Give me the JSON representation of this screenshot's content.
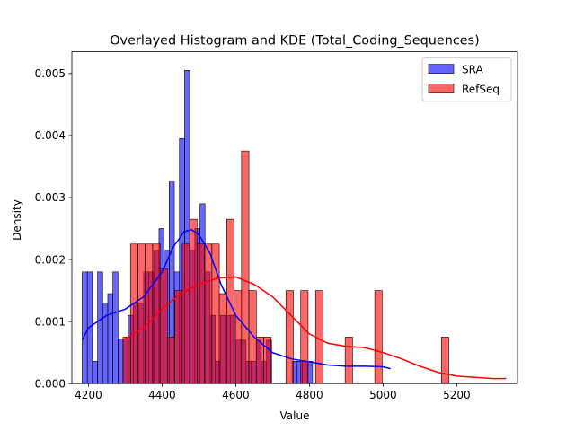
{
  "chart_data": {
    "type": "bar",
    "title": "Overlayed Histogram and KDE (Total_Coding_Sequences)",
    "xlabel": "Value",
    "ylabel": "Density",
    "xlim": [
      4155,
      5365
    ],
    "ylim": [
      0,
      0.00535
    ],
    "xticks": [
      4200,
      4400,
      4600,
      4800,
      5000,
      5200
    ],
    "yticks": [
      0.0,
      0.001,
      0.002,
      0.003,
      0.004,
      0.005
    ],
    "ytick_labels": [
      "0.000",
      "0.001",
      "0.002",
      "0.003",
      "0.004",
      "0.005"
    ],
    "legend_position": "top-right",
    "grid": false,
    "series": [
      {
        "name": "SRA",
        "color": "#0000ff",
        "kde_color": "#0000ff",
        "bin_start": 4183,
        "bin_width": 13.9,
        "values": [
          0.0018,
          0.0018,
          0.00036,
          0.0018,
          0.0013,
          0.00145,
          0.0018,
          0.00072,
          0.00072,
          0.0011,
          0.0013,
          0.0013,
          0.0018,
          0.0018,
          0.00215,
          0.0025,
          0.00215,
          0.00325,
          0.0018,
          0.00395,
          0.00505,
          0.00215,
          0.0025,
          0.0029,
          0.0018,
          0.0011,
          0.00036,
          0.0011,
          0.0011,
          0.0011,
          0.0007,
          0.0007,
          0.00036,
          0.00036,
          0.0007,
          0.00036,
          0.0007,
          0.0,
          0.0,
          0.0,
          0.0,
          0.00036,
          0.00036,
          0.00036,
          0.00036
        ],
        "kde_x": [
          4183,
          4200,
          4250,
          4300,
          4350,
          4400,
          4430,
          4460,
          4480,
          4500,
          4530,
          4560,
          4600,
          4650,
          4700,
          4750,
          4800,
          4850,
          4900,
          4950,
          5000,
          5020
        ],
        "kde_y": [
          0.0007,
          0.0009,
          0.0011,
          0.0012,
          0.0014,
          0.0018,
          0.0022,
          0.00245,
          0.00248,
          0.0024,
          0.0021,
          0.0016,
          0.0011,
          0.00075,
          0.0005,
          0.0004,
          0.00035,
          0.0003,
          0.00028,
          0.00028,
          0.00027,
          0.00024
        ]
      },
      {
        "name": "RefSeq",
        "color": "#ff0000",
        "kde_color": "#ff0000",
        "bin_start": 4294,
        "bin_width": 20.1,
        "values": [
          0.00075,
          0.00225,
          0.00225,
          0.00225,
          0.00225,
          0.00185,
          0.00075,
          0.0015,
          0.00225,
          0.00265,
          0.00225,
          0.00225,
          0.00225,
          0.00145,
          0.00265,
          0.0015,
          0.00375,
          0.0015,
          0.00075,
          0.00075,
          0.0,
          0.0,
          0.0015,
          0.0,
          0.0015,
          0.0,
          0.0015,
          0.0,
          0.0,
          0.0,
          0.00075,
          0.0,
          0.0,
          0.0,
          0.0015,
          0.0,
          0.0,
          0.0,
          0.0,
          0.0,
          0.0,
          0.0,
          0.0,
          0.00075
        ],
        "kde_x": [
          4294,
          4350,
          4400,
          4450,
          4500,
          4550,
          4600,
          4650,
          4700,
          4750,
          4800,
          4850,
          4900,
          4950,
          5000,
          5050,
          5100,
          5150,
          5200,
          5250,
          5300,
          5334
        ],
        "kde_y": [
          0.0007,
          0.0009,
          0.0012,
          0.00145,
          0.0016,
          0.0017,
          0.00172,
          0.0016,
          0.0014,
          0.0011,
          0.0008,
          0.00065,
          0.0006,
          0.00058,
          0.0005,
          0.0004,
          0.00028,
          0.00018,
          0.00012,
          0.0001,
          8e-05,
          8e-05
        ]
      }
    ]
  }
}
